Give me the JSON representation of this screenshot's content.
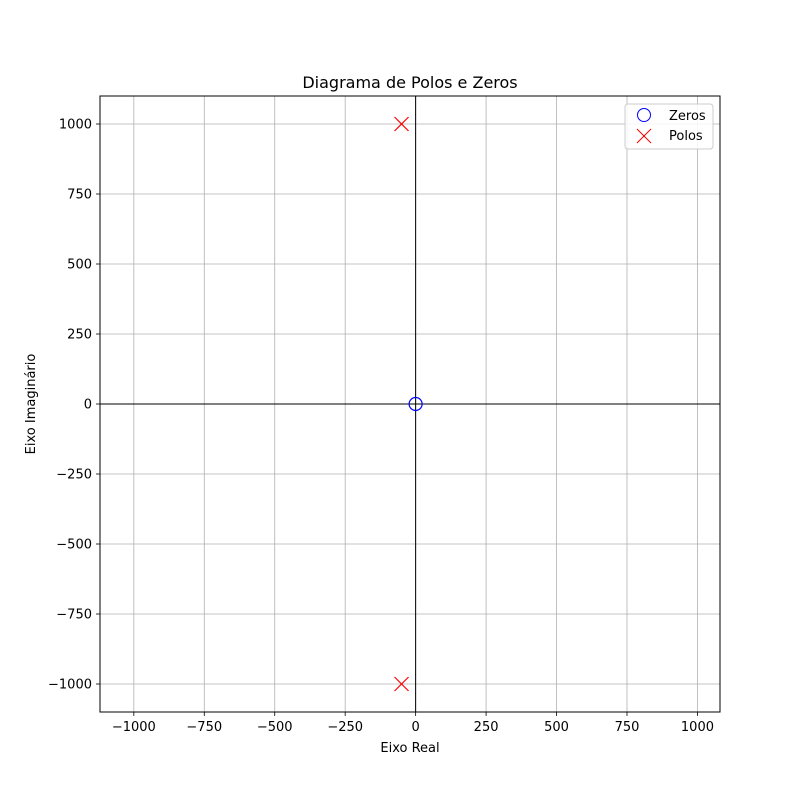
{
  "chart_data": {
    "type": "scatter",
    "title": "Diagrama de Polos e Zeros",
    "xlabel": "Eixo Real",
    "ylabel": "Eixo Imaginário",
    "xlim": [
      -1120,
      1080
    ],
    "ylim": [
      -1100,
      1100
    ],
    "x_ticks": [
      -1000,
      -750,
      -500,
      -250,
      0,
      250,
      500,
      750,
      1000
    ],
    "x_tick_labels": [
      "−1000",
      "−750",
      "−500",
      "−250",
      "0",
      "250",
      "500",
      "750",
      "1000"
    ],
    "y_ticks": [
      1000,
      750,
      500,
      250,
      0,
      -250,
      -500,
      -750,
      -1000
    ],
    "y_tick_labels": [
      "1000",
      "750",
      "500",
      "250",
      "0",
      "−250",
      "−500",
      "−750",
      "−1000"
    ],
    "grid": true,
    "legend_position": "top-right",
    "reference_lines": {
      "x": 0,
      "y": 0,
      "color": "#000000"
    },
    "series": [
      {
        "name": "Zeros",
        "marker": "circle-open",
        "color": "#0000ff",
        "points": [
          {
            "x": 0,
            "y": 0
          }
        ]
      },
      {
        "name": "Polos",
        "marker": "x",
        "color": "#ff0000",
        "points": [
          {
            "x": -50,
            "y": 1000
          },
          {
            "x": -50,
            "y": -1000
          }
        ]
      }
    ]
  }
}
